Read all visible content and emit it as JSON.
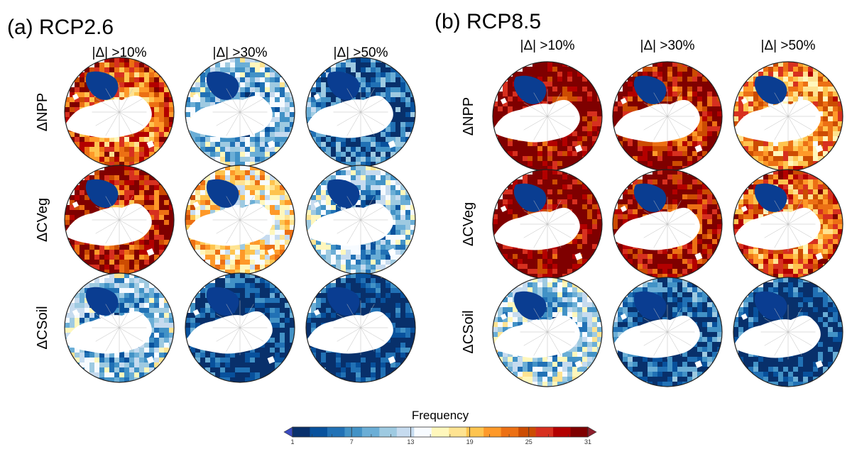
{
  "colors": {
    "ramp": [
      "#08306b",
      "#08519c",
      "#2171b5",
      "#4292c6",
      "#6baed6",
      "#9ecae1",
      "#c6dbef",
      "#f7fbff",
      "#fff7bc",
      "#fee391",
      "#fec44f",
      "#fe9929",
      "#ec7014",
      "#cc4c02",
      "#d7301f",
      "#b30000",
      "#7f0000"
    ],
    "land_mask": "#ffffff",
    "greenland": "#0a3d91",
    "grid": "#bdbdbd"
  },
  "chart_data": {
    "type": "heatmap",
    "projection": "north-polar-stereographic",
    "colorbar": {
      "title": "Frequency",
      "min": 1,
      "max": 31,
      "tick_labels": [
        "1",
        "7",
        "13",
        "19",
        "25",
        "31"
      ],
      "extend": "both"
    },
    "panels": [
      {
        "title": "(a) RCP2.6",
        "columns": [
          "|Δ| >10%",
          "|Δ| >30%",
          "|Δ| >50%"
        ],
        "rows": [
          "ΔNPP",
          "ΔCVeg",
          "ΔCSoil"
        ],
        "mean_frequency": [
          [
            24,
            10,
            5
          ],
          [
            27,
            17,
            10
          ],
          [
            10,
            2,
            1
          ]
        ]
      },
      {
        "title": "(b) RCP8.5",
        "columns": [
          "|Δ| >10%",
          "|Δ| >30%",
          "|Δ| >50%"
        ],
        "rows": [
          "ΔNPP",
          "ΔCVeg",
          "ΔCSoil"
        ],
        "mean_frequency": [
          [
            30,
            28,
            21
          ],
          [
            30,
            28,
            23
          ],
          [
            11,
            4,
            2
          ]
        ]
      }
    ]
  }
}
